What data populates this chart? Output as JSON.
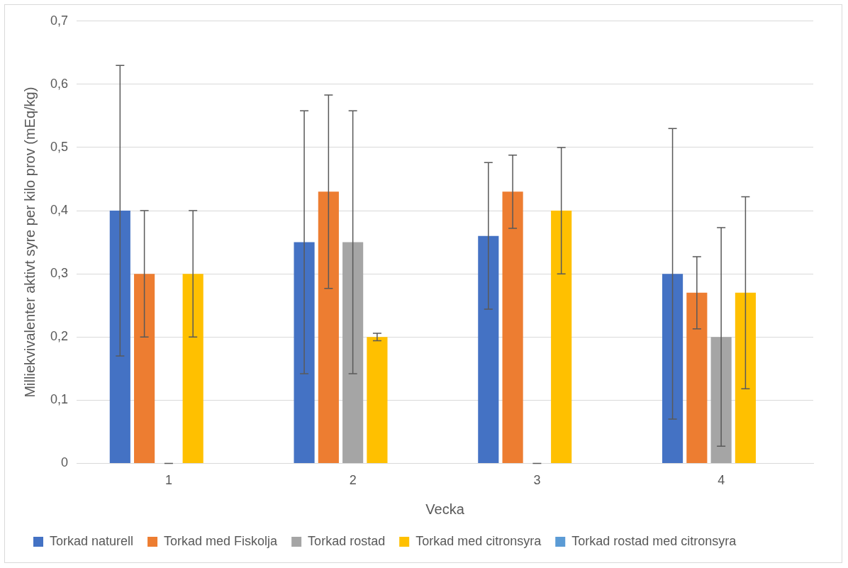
{
  "chart_data": {
    "type": "bar",
    "xlabel": "Vecka",
    "ylabel": "Milliekvivalenter aktivt syre per kilo prov (mEq/kg)",
    "categories": [
      "1",
      "2",
      "3",
      "4"
    ],
    "series": [
      {
        "name": "Torkad naturell",
        "color": "#4472c4",
        "values": [
          0.4,
          0.35,
          0.36,
          0.3
        ],
        "errors": [
          0.23,
          0.208,
          0.116,
          0.23
        ]
      },
      {
        "name": "Torkad med Fiskolja",
        "color": "#ed7d31",
        "values": [
          0.3,
          0.43,
          0.43,
          0.27
        ],
        "errors": [
          0.1,
          0.153,
          0.058,
          0.057
        ]
      },
      {
        "name": "Torkad rostad",
        "color": "#a5a5a5",
        "values": [
          0,
          0.35,
          0,
          0.2
        ],
        "errors": [
          0,
          0.208,
          0,
          0.173
        ]
      },
      {
        "name": "Torkad med citronsyra",
        "color": "#ffc000",
        "values": [
          0.3,
          0.2,
          0.4,
          0.27
        ],
        "errors": [
          0.1,
          0.006,
          0.1,
          0.152
        ]
      },
      {
        "name": "Torkad rostad med citronsyra",
        "color": "#5b9bd5",
        "values": [
          null,
          null,
          null,
          null
        ]
      }
    ],
    "ylim": [
      0,
      0.7
    ],
    "yticks": [
      0,
      {
        "value": 0.1,
        "label": "0,1"
      },
      {
        "value": 0.2,
        "label": "0,2"
      },
      {
        "value": 0.3,
        "label": "0,3"
      },
      {
        "value": 0.4,
        "label": "0,4"
      },
      {
        "value": 0.5,
        "label": "0,5"
      },
      {
        "value": 0.6,
        "label": "0,6"
      },
      {
        "value": 0.7,
        "label": "0,7"
      }
    ],
    "grid": "y",
    "legend": "bottom"
  }
}
